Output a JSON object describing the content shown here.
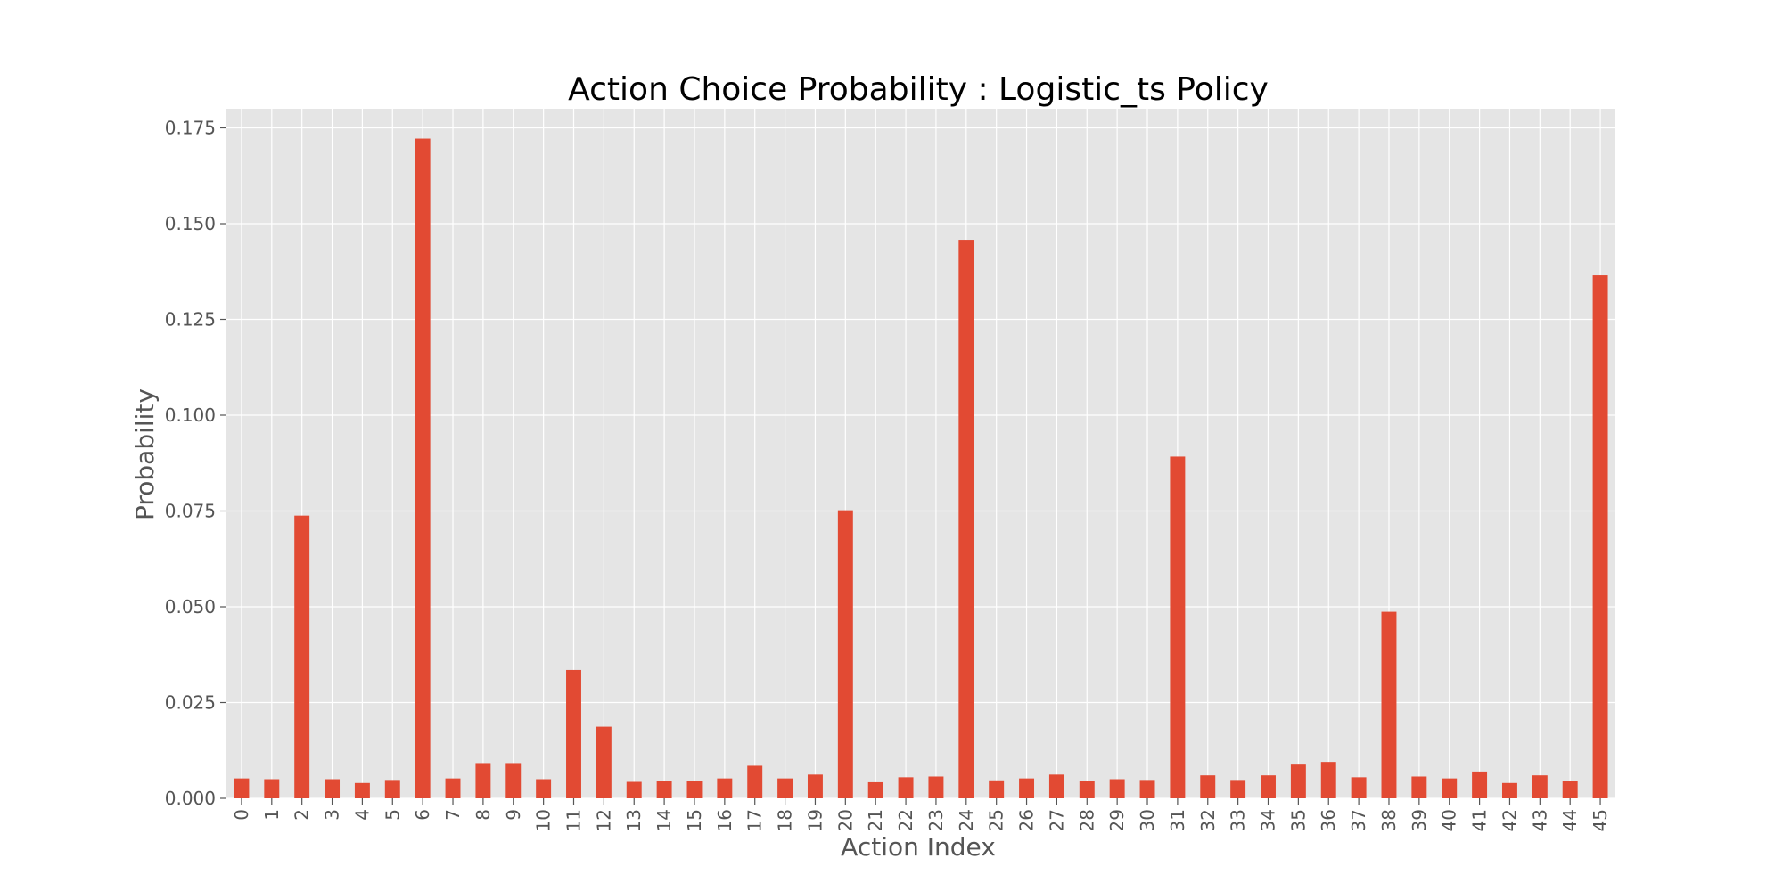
{
  "chart_data": {
    "type": "bar",
    "title": "Action Choice Probability : Logistic_ts Policy",
    "xlabel": "Action Index",
    "ylabel": "Probability",
    "categories": [
      "0",
      "1",
      "2",
      "3",
      "4",
      "5",
      "6",
      "7",
      "8",
      "9",
      "10",
      "11",
      "12",
      "13",
      "14",
      "15",
      "16",
      "17",
      "18",
      "19",
      "20",
      "21",
      "22",
      "23",
      "24",
      "25",
      "26",
      "27",
      "28",
      "29",
      "30",
      "31",
      "32",
      "33",
      "34",
      "35",
      "36",
      "37",
      "38",
      "39",
      "40",
      "41",
      "42",
      "43",
      "44",
      "45"
    ],
    "values": [
      0.0052,
      0.005,
      0.0738,
      0.005,
      0.004,
      0.0048,
      0.1722,
      0.0052,
      0.0092,
      0.0092,
      0.005,
      0.0335,
      0.0187,
      0.0043,
      0.0045,
      0.0045,
      0.0052,
      0.0085,
      0.0052,
      0.0062,
      0.0752,
      0.0042,
      0.0055,
      0.0057,
      0.1458,
      0.0047,
      0.0052,
      0.0062,
      0.0045,
      0.005,
      0.0048,
      0.0892,
      0.006,
      0.0048,
      0.006,
      0.0088,
      0.0095,
      0.0055,
      0.0487,
      0.0057,
      0.0052,
      0.007,
      0.004,
      0.006,
      0.0045,
      0.1365
    ],
    "ylim": [
      0,
      0.18
    ],
    "yticks": [
      0,
      0.025,
      0.05,
      0.075,
      0.1,
      0.125,
      0.15,
      0.175
    ],
    "ytick_labels": [
      "0.000",
      "0.025",
      "0.050",
      "0.075",
      "0.100",
      "0.125",
      "0.150",
      "0.175"
    ],
    "grid": true,
    "colors": {
      "bar": "#E24A33",
      "plot_bg": "#E5E5E5",
      "grid": "#FFFFFF",
      "text": "#555555"
    }
  }
}
